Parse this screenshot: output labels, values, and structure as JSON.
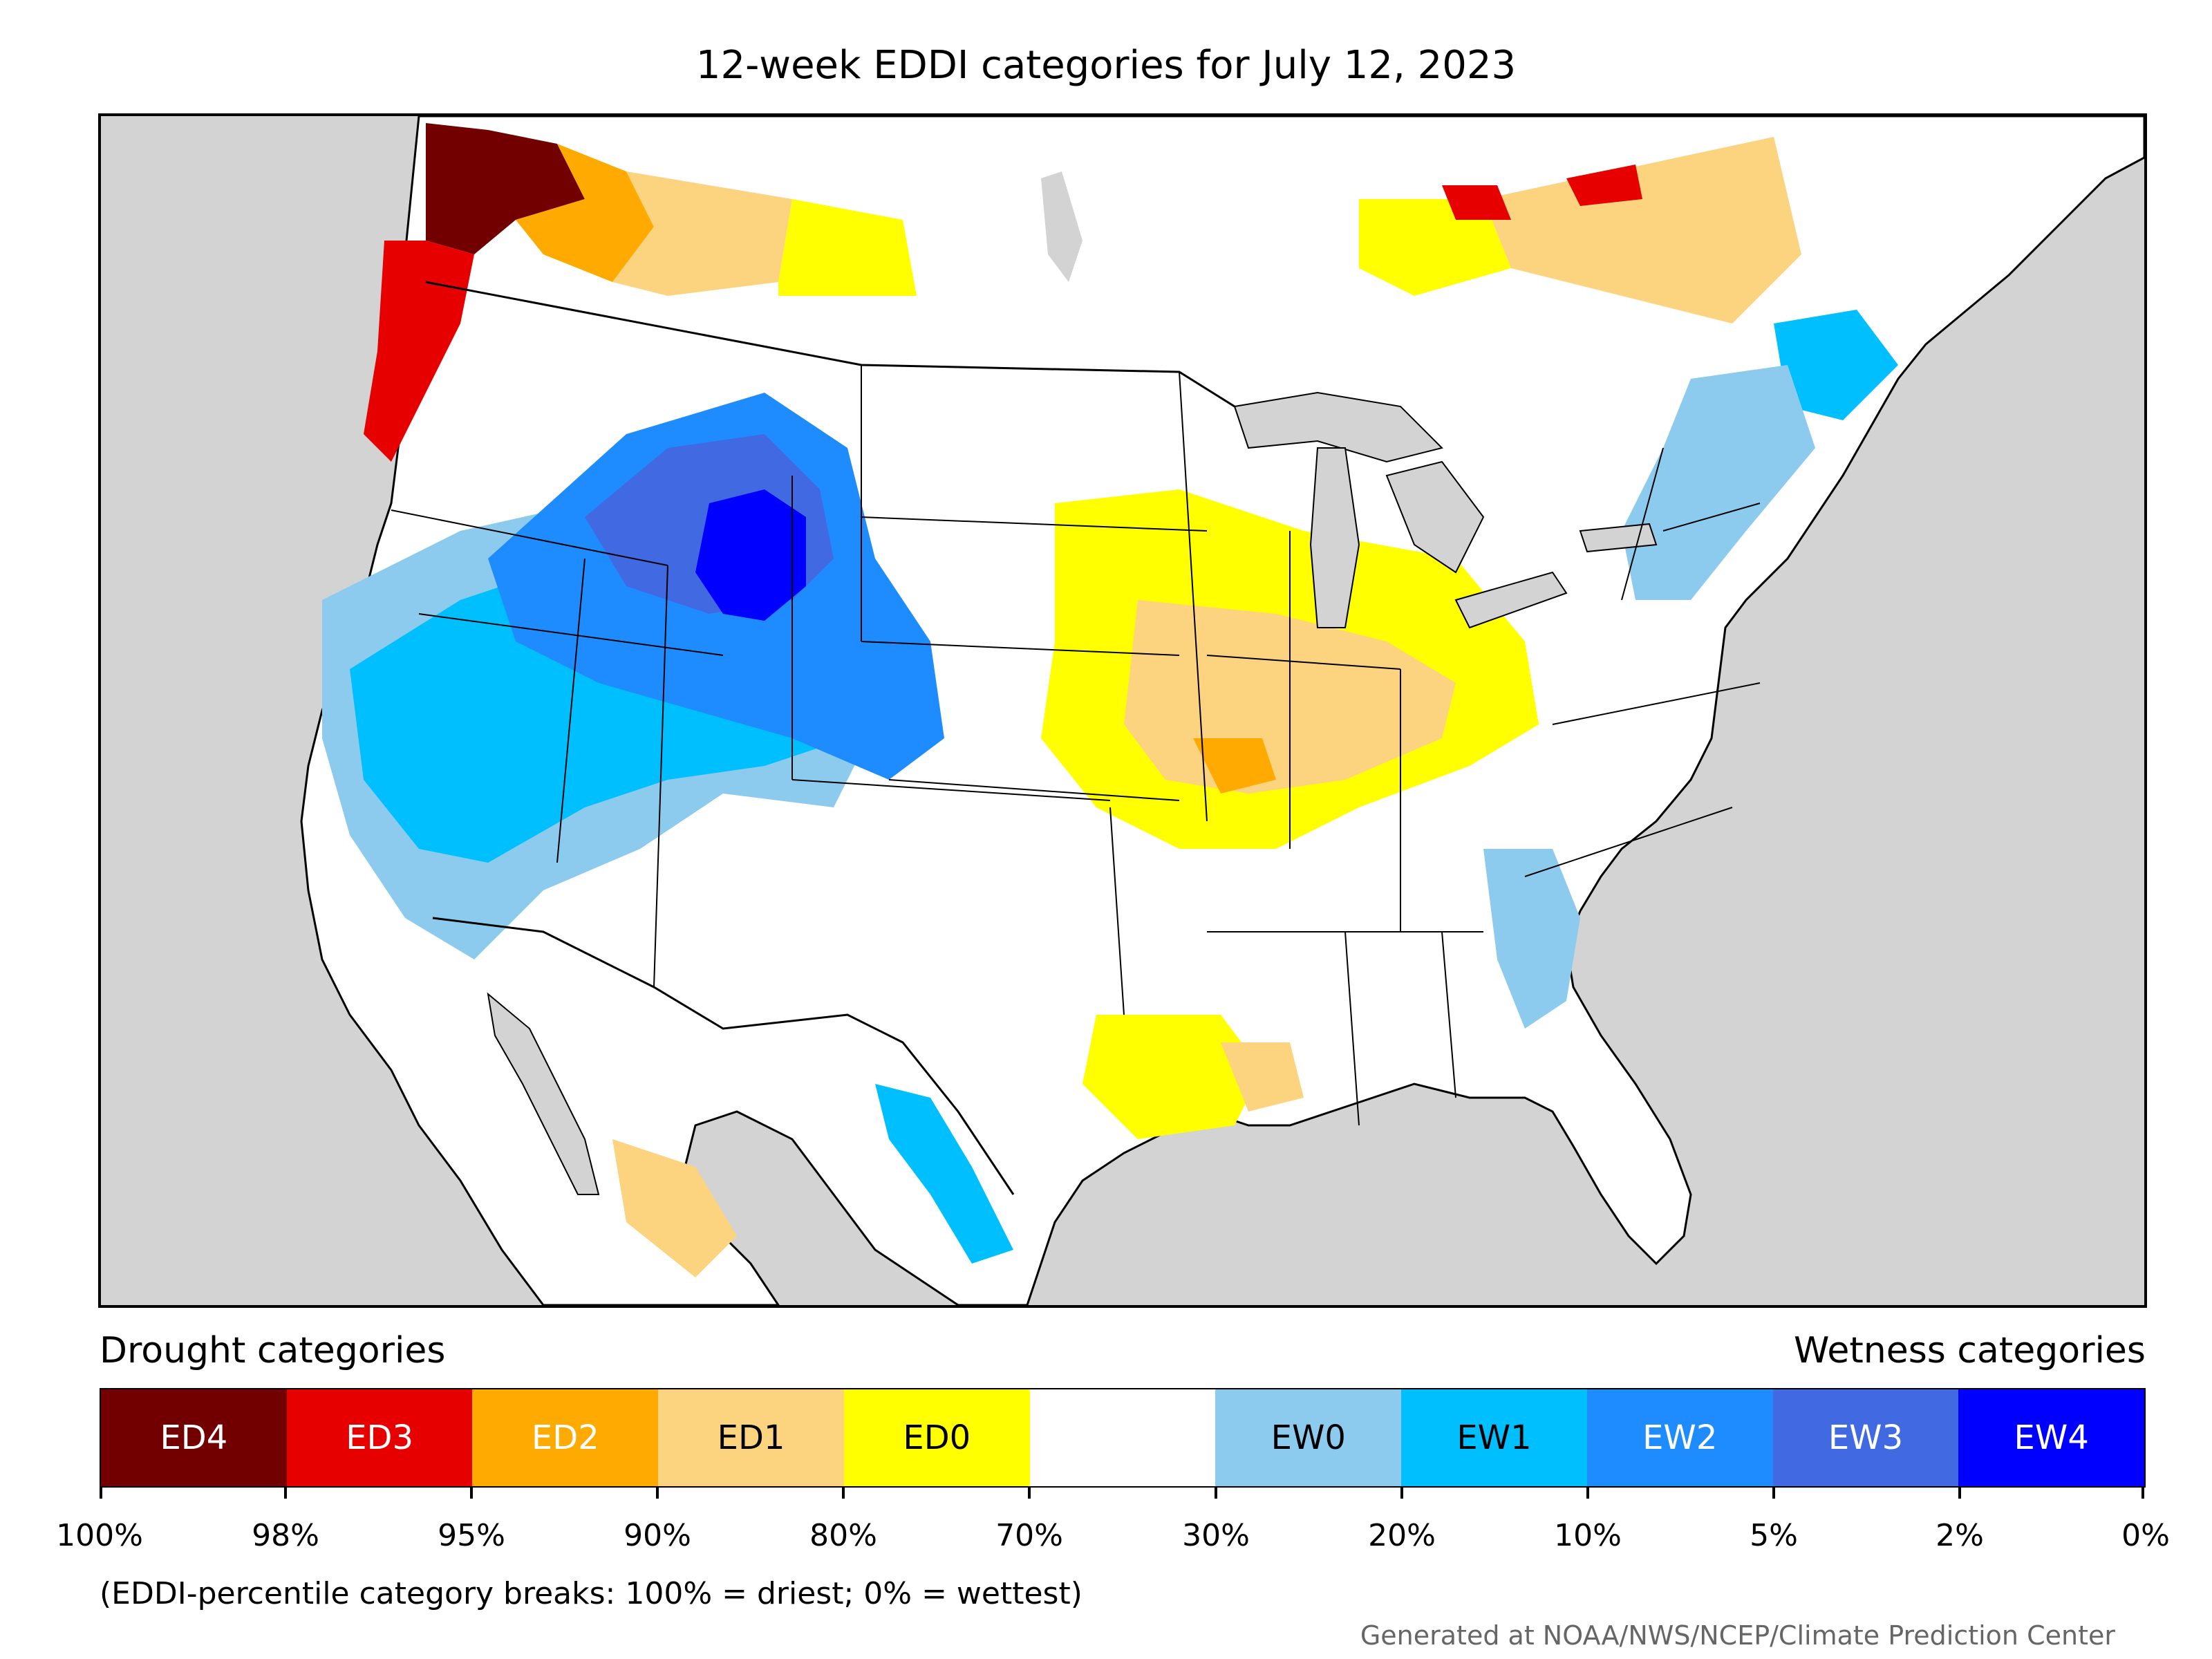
{
  "title": "12-week EDDI categories for July 12, 2023",
  "legend": {
    "drought_heading": "Drought categories",
    "wetness_heading": "Wetness categories",
    "categories": [
      {
        "label": "ED4",
        "color": "#730000",
        "text_color": "#ffffff"
      },
      {
        "label": "ED3",
        "color": "#e60000",
        "text_color": "#ffffff"
      },
      {
        "label": "ED2",
        "color": "#ffaa00",
        "text_color": "#ffffff"
      },
      {
        "label": "ED1",
        "color": "#fcd37f",
        "text_color": "#000000"
      },
      {
        "label": "ED0",
        "color": "#ffff00",
        "text_color": "#000000"
      },
      {
        "label": "",
        "color": "#ffffff",
        "text_color": "#000000"
      },
      {
        "label": "EW0",
        "color": "#8ccbee",
        "text_color": "#000000"
      },
      {
        "label": "EW1",
        "color": "#00bfff",
        "text_color": "#000000"
      },
      {
        "label": "EW2",
        "color": "#1e8cff",
        "text_color": "#ffffff"
      },
      {
        "label": "EW3",
        "color": "#4169e1",
        "text_color": "#ffffff"
      },
      {
        "label": "EW4",
        "color": "#0000ff",
        "text_color": "#ffffff"
      }
    ],
    "ticks": [
      "100%",
      "98%",
      "95%",
      "90%",
      "80%",
      "70%",
      "30%",
      "20%",
      "10%",
      "5%",
      "2%",
      "0%"
    ]
  },
  "footnote": "(EDDI-percentile category breaks: 100% = driest; 0% = wettest)",
  "credit": "Generated at NOAA/NWS/NCEP/Climate Prediction Center",
  "map": {
    "ocean_color": "#d3d3d3",
    "land_color": "#ffffff",
    "lake_color": "#d3d3d3",
    "border_color": "#000000"
  }
}
